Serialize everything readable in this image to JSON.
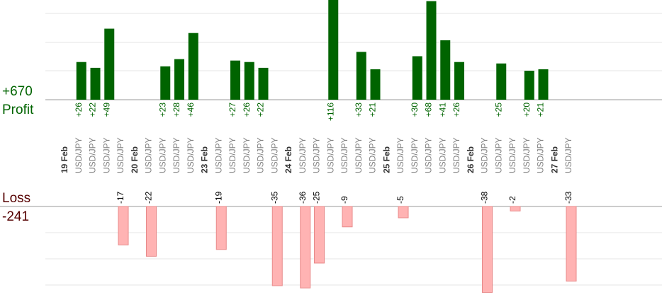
{
  "chart_data": {
    "type": "bar",
    "profit": {
      "label": "Profit",
      "total": "+670"
    },
    "loss": {
      "label": "Loss",
      "total": "-241"
    },
    "colors": {
      "profit_bar": "#006400",
      "profit_text": "#006400",
      "loss_bar": "#ffb3b3",
      "loss_bar_edge": "#e88a8a",
      "loss_text": "#000000",
      "instrument_text": "#808080",
      "date_text": "#333333",
      "grid": "#e6e6e6",
      "axis": "#999999"
    },
    "trades": [
      {
        "date": "19 Feb",
        "instrument": "USD/JPY",
        "value": 26,
        "label": "+26"
      },
      {
        "date": "19 Feb",
        "instrument": "USD/JPY",
        "value": 22,
        "label": "+22"
      },
      {
        "date": "19 Feb",
        "instrument": "USD/JPY",
        "value": 49,
        "label": "+49"
      },
      {
        "date": "19 Feb",
        "instrument": "USD/JPY",
        "value": -17,
        "label": "-17"
      },
      {
        "date": "20 Feb",
        "instrument": "USD/JPY",
        "value": -22,
        "label": "-22"
      },
      {
        "date": "20 Feb",
        "instrument": "USD/JPY",
        "value": 23,
        "label": "+23"
      },
      {
        "date": "20 Feb",
        "instrument": "USD/JPY",
        "value": 28,
        "label": "+28"
      },
      {
        "date": "20 Feb",
        "instrument": "USD/JPY",
        "value": 46,
        "label": "+46"
      },
      {
        "date": "23 Feb",
        "instrument": "USD/JPY",
        "value": -19,
        "label": "-19"
      },
      {
        "date": "23 Feb",
        "instrument": "USD/JPY",
        "value": 27,
        "label": "+27"
      },
      {
        "date": "23 Feb",
        "instrument": "USD/JPY",
        "value": 26,
        "label": "+26"
      },
      {
        "date": "23 Feb",
        "instrument": "USD/JPY",
        "value": 22,
        "label": "+22"
      },
      {
        "date": "23 Feb",
        "instrument": "USD/JPY",
        "value": -35,
        "label": "-35"
      },
      {
        "date": "24 Feb",
        "instrument": "USD/JPY",
        "value": -36,
        "label": "-36"
      },
      {
        "date": "24 Feb",
        "instrument": "USD/JPY",
        "value": -25,
        "label": "-25"
      },
      {
        "date": "24 Feb",
        "instrument": "USD/JPY",
        "value": 116,
        "label": "+116"
      },
      {
        "date": "24 Feb",
        "instrument": "USD/JPY",
        "value": -9,
        "label": "-9"
      },
      {
        "date": "24 Feb",
        "instrument": "USD/JPY",
        "value": 33,
        "label": "+33"
      },
      {
        "date": "24 Feb",
        "instrument": "USD/JPY",
        "value": 21,
        "label": "+21"
      },
      {
        "date": "25 Feb",
        "instrument": "USD/JPY",
        "value": -5,
        "label": "-5"
      },
      {
        "date": "25 Feb",
        "instrument": "USD/JPY",
        "value": 30,
        "label": "+30"
      },
      {
        "date": "25 Feb",
        "instrument": "USD/JPY",
        "value": 68,
        "label": "+68"
      },
      {
        "date": "25 Feb",
        "instrument": "USD/JPY",
        "value": 41,
        "label": "+41"
      },
      {
        "date": "25 Feb",
        "instrument": "USD/JPY",
        "value": 26,
        "label": "+26"
      },
      {
        "date": "26 Feb",
        "instrument": "USD/JPY",
        "value": -38,
        "label": "-38"
      },
      {
        "date": "26 Feb",
        "instrument": "USD/JPY",
        "value": 25,
        "label": "+25"
      },
      {
        "date": "26 Feb",
        "instrument": "USD/JPY",
        "value": -2,
        "label": "-2"
      },
      {
        "date": "26 Feb",
        "instrument": "USD/JPY",
        "value": 20,
        "label": "+20"
      },
      {
        "date": "26 Feb",
        "instrument": "USD/JPY",
        "value": 21,
        "label": "+21"
      },
      {
        "date": "27 Feb",
        "instrument": "USD/JPY",
        "value": -33,
        "label": "-33"
      }
    ]
  }
}
